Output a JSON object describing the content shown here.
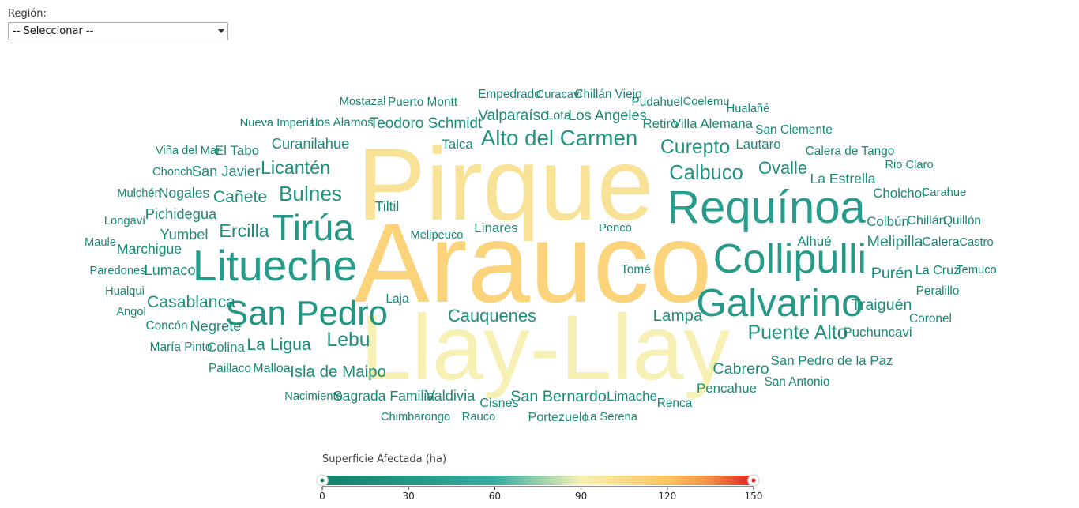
{
  "filter": {
    "label": "Región:",
    "selected": "-- Seleccionar --"
  },
  "legend": {
    "title": "Superficie Afectada (ha)",
    "ticks": [
      "0",
      "30",
      "60",
      "90",
      "120",
      "150"
    ],
    "min": 0,
    "max": 150
  },
  "colors": {
    "dark": "#128068",
    "teal": "#35aca0",
    "cream": "#f6f0b4",
    "yellow": "#fcc55e",
    "orange": "#f28e45",
    "red": "#dc1c1c"
  },
  "chart_data": {
    "type": "wordcloud",
    "title": "",
    "legend_title": "Superficie Afectada (ha)",
    "words": [
      {
        "text": "Arauco",
        "value": 110
      },
      {
        "text": "Pirque",
        "value": 100
      },
      {
        "text": "Llay-Llay",
        "value": 90
      },
      {
        "text": "Requínoa",
        "value": 40
      },
      {
        "text": "Litueche",
        "value": 38
      },
      {
        "text": "Collipulli",
        "value": 36
      },
      {
        "text": "Galvarino",
        "value": 34
      },
      {
        "text": "Tirúa",
        "value": 32
      },
      {
        "text": "San Pedro",
        "value": 30
      },
      {
        "text": "Alto del Carmen",
        "value": 28
      },
      {
        "text": "Bulnes",
        "value": 26
      },
      {
        "text": "Calbuco",
        "value": 25
      },
      {
        "text": "Curepto",
        "value": 24
      },
      {
        "text": "Puente Alto",
        "value": 24
      },
      {
        "text": "Lebu",
        "value": 24
      },
      {
        "text": "Ercilla",
        "value": 22
      },
      {
        "text": "Licantén",
        "value": 22
      },
      {
        "text": "Ovalle",
        "value": 20
      },
      {
        "text": "Cauquenes",
        "value": 20
      },
      {
        "text": "Casablanca",
        "value": 19
      },
      {
        "text": "Cañete",
        "value": 19
      },
      {
        "text": "La Ligua",
        "value": 19
      },
      {
        "text": "Isla de Maipo",
        "value": 18
      },
      {
        "text": "Lampa",
        "value": 18
      },
      {
        "text": "Melipilla",
        "value": 17
      },
      {
        "text": "Purén",
        "value": 17
      },
      {
        "text": "Cabrero",
        "value": 17
      },
      {
        "text": "Traiguén",
        "value": 17
      },
      {
        "text": "San Bernardo",
        "value": 17
      },
      {
        "text": "Teodoro Schmidt",
        "value": 16
      },
      {
        "text": "Valparaíso",
        "value": 16
      },
      {
        "text": "Los Angeles",
        "value": 15
      },
      {
        "text": "Curanilahue",
        "value": 15
      },
      {
        "text": "San Javier",
        "value": 15
      },
      {
        "text": "Yumbel",
        "value": 15
      },
      {
        "text": "Negrete",
        "value": 15
      },
      {
        "text": "Lumaco",
        "value": 15
      },
      {
        "text": "Pichidegua",
        "value": 15
      },
      {
        "text": "Valdivia",
        "value": 15
      },
      {
        "text": "Sagrada Familia",
        "value": 14
      },
      {
        "text": "La Estrella",
        "value": 14
      },
      {
        "text": "Nogales",
        "value": 14
      },
      {
        "text": "Tiltil",
        "value": 14
      },
      {
        "text": "Marchigue",
        "value": 14
      },
      {
        "text": "Lautaro",
        "value": 13
      },
      {
        "text": "Colbún",
        "value": 13
      },
      {
        "text": "Alhué",
        "value": 13
      },
      {
        "text": "Retiro",
        "value": 13
      },
      {
        "text": "Villa Alemana",
        "value": 13
      },
      {
        "text": "Linares",
        "value": 13
      },
      {
        "text": "Talca",
        "value": 13
      },
      {
        "text": "Cholchol",
        "value": 13
      },
      {
        "text": "Puchuncavi",
        "value": 13
      },
      {
        "text": "Colina",
        "value": 13
      },
      {
        "text": "Malloa",
        "value": 12
      },
      {
        "text": "Limache",
        "value": 13
      },
      {
        "text": "Pencahue",
        "value": 13
      },
      {
        "text": "San Pedro de la Paz",
        "value": 13
      },
      {
        "text": "El Tabo",
        "value": 13
      },
      {
        "text": "Chillán",
        "value": 12
      },
      {
        "text": "La Cruz",
        "value": 12
      },
      {
        "text": "Portezuelo",
        "value": 12
      },
      {
        "text": "Cisnes",
        "value": 12
      },
      {
        "text": "Lota",
        "value": 12
      },
      {
        "text": "Calera",
        "value": 12
      },
      {
        "text": "Concón",
        "value": 11
      },
      {
        "text": "María Pinto",
        "value": 11
      },
      {
        "text": "Paillaco",
        "value": 11
      },
      {
        "text": "Laja",
        "value": 11
      },
      {
        "text": "Tomé",
        "value": 11
      },
      {
        "text": "Renca",
        "value": 11
      },
      {
        "text": "Los Alamos",
        "value": 11
      },
      {
        "text": "Puerto Montt",
        "value": 11
      },
      {
        "text": "Chillán Viejo",
        "value": 11
      },
      {
        "text": "Empedrado",
        "value": 11
      },
      {
        "text": "Pudahuel",
        "value": 11
      },
      {
        "text": "San Clemente",
        "value": 11
      },
      {
        "text": "Calera de Tango",
        "value": 11
      },
      {
        "text": "Quillón",
        "value": 11
      },
      {
        "text": "Peralillo",
        "value": 11
      },
      {
        "text": "Coronel",
        "value": 11
      },
      {
        "text": "San Antonio",
        "value": 11
      },
      {
        "text": "La Serena",
        "value": 10
      },
      {
        "text": "Paredones",
        "value": 10
      },
      {
        "text": "Hualqui",
        "value": 10
      },
      {
        "text": "Longaví",
        "value": 10
      },
      {
        "text": "Chonchi",
        "value": 10
      },
      {
        "text": "Viña del Mar",
        "value": 10
      },
      {
        "text": "Nueva Imperial",
        "value": 10
      },
      {
        "text": "Mostazal",
        "value": 10
      },
      {
        "text": "Curacaví",
        "value": 10
      },
      {
        "text": "Coelemu",
        "value": 10
      },
      {
        "text": "Hualañé",
        "value": 10
      },
      {
        "text": "Rio Claro",
        "value": 10
      },
      {
        "text": "Carahue",
        "value": 10
      },
      {
        "text": "Castro",
        "value": 10
      },
      {
        "text": "Temuco",
        "value": 10
      },
      {
        "text": "Mulchén",
        "value": 10
      },
      {
        "text": "Maule",
        "value": 10
      },
      {
        "text": "Angol",
        "value": 10
      },
      {
        "text": "Melipeuco",
        "value": 10
      },
      {
        "text": "Penco",
        "value": 10
      },
      {
        "text": "Nacimiento",
        "value": 10
      },
      {
        "text": "Chimbarongo",
        "value": 10
      },
      {
        "text": "Rauco",
        "value": 10
      }
    ]
  }
}
